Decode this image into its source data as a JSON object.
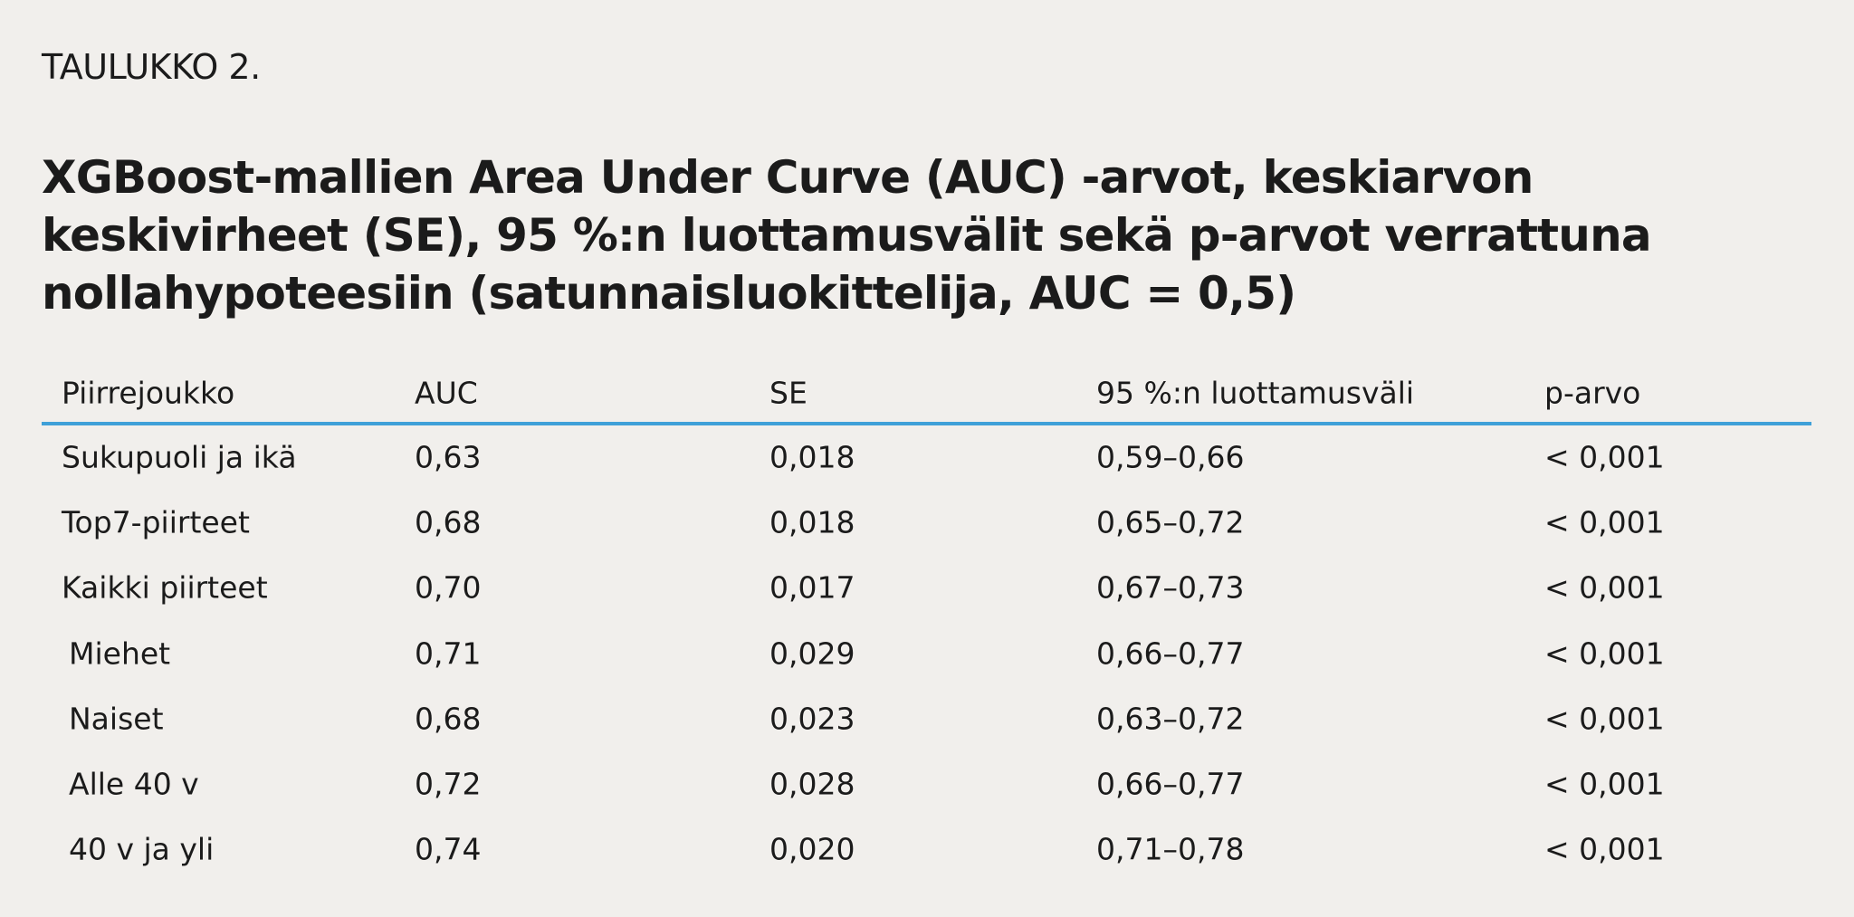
{
  "label": "TAULUKKO 2.",
  "title": "XGBoost-mallien Area Under Curve (AUC) -arvot, keskiarvon keskivirheet (SE), 95 %:n luottamusvälit sekä p-arvot verrattuna nollahypoteesiin (satunnaisluokittelija, AUC = 0,5)",
  "table": {
    "header": [
      "Piirrejoukko",
      "AUC",
      "SE",
      "95 %:n luottamusväli",
      "p-arvo"
    ],
    "rows": [
      [
        "Sukupuoli ja ikä",
        "0,63",
        "0,018",
        "0,59–0,66",
        "< 0,001"
      ],
      [
        "Top7-piirteet",
        "0,68",
        "0,018",
        "0,65–0,72",
        "< 0,001"
      ],
      [
        "Kaikki piirteet",
        "0,70",
        "0,017",
        "0,67–0,73",
        "< 0,001"
      ],
      [
        "Miehet",
        "0,71",
        "0,029",
        "0,66–0,77",
        "< 0,001"
      ],
      [
        "Naiset",
        "0,68",
        "0,023",
        "0,63–0,72",
        "< 0,001"
      ],
      [
        "Alle 40 v",
        "0,72",
        "0,028",
        "0,66–0,77",
        "< 0,001"
      ],
      [
        "40 v ja yli",
        "0,74",
        "0,020",
        "0,71–0,78",
        "< 0,001"
      ]
    ]
  }
}
